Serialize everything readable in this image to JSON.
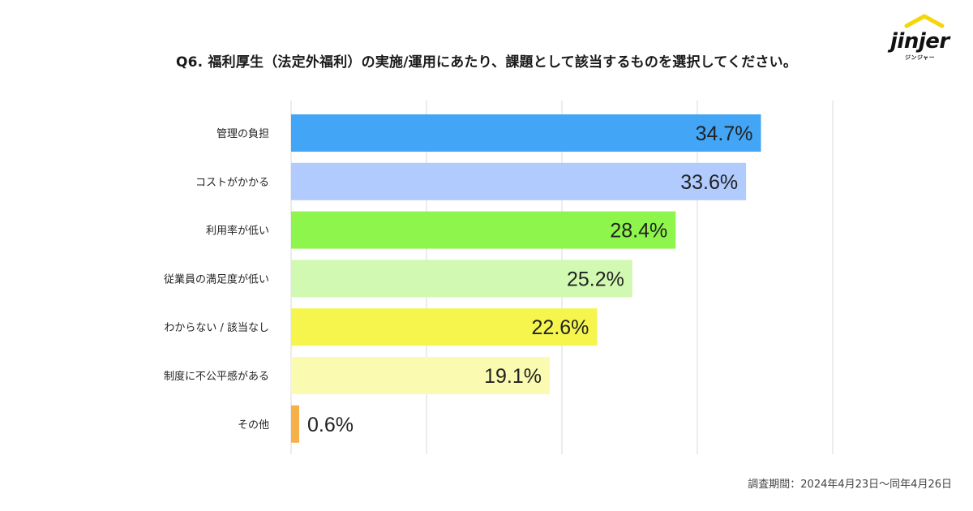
{
  "title": "Q6. 福利厚生（法定外福利）の実施/運用にあたり、課題として該当するものを選択してください。",
  "logo": {
    "word": "jinjer",
    "sub": "ジンジャー",
    "accent_color": "#f5d60a"
  },
  "footnote": "調査期間：2024年4月23日〜同年4月26日",
  "chart_data": {
    "type": "bar",
    "orientation": "horizontal",
    "title": "Q6. 福利厚生（法定外福利）の実施/運用にあたり、課題として該当するものを選択してください。",
    "xlabel": "",
    "ylabel": "",
    "xlim": [
      0,
      40
    ],
    "grid": true,
    "categories": [
      "管理の負担",
      "コストがかかる",
      "利用率が低い",
      "従業員の満足度が低い",
      "わからない / 該当なし",
      "制度に不公平感がある",
      "その他"
    ],
    "values": [
      34.7,
      33.6,
      28.4,
      25.2,
      22.6,
      19.1,
      0.6
    ],
    "value_labels": [
      "34.7%",
      "33.6%",
      "28.4%",
      "25.2%",
      "22.6%",
      "19.1%",
      "0.6%"
    ],
    "colors": [
      "#43a5f5",
      "#b1cbff",
      "#8ef54c",
      "#d1f9b1",
      "#f5f54d",
      "#fafab0",
      "#f6b04a"
    ]
  }
}
